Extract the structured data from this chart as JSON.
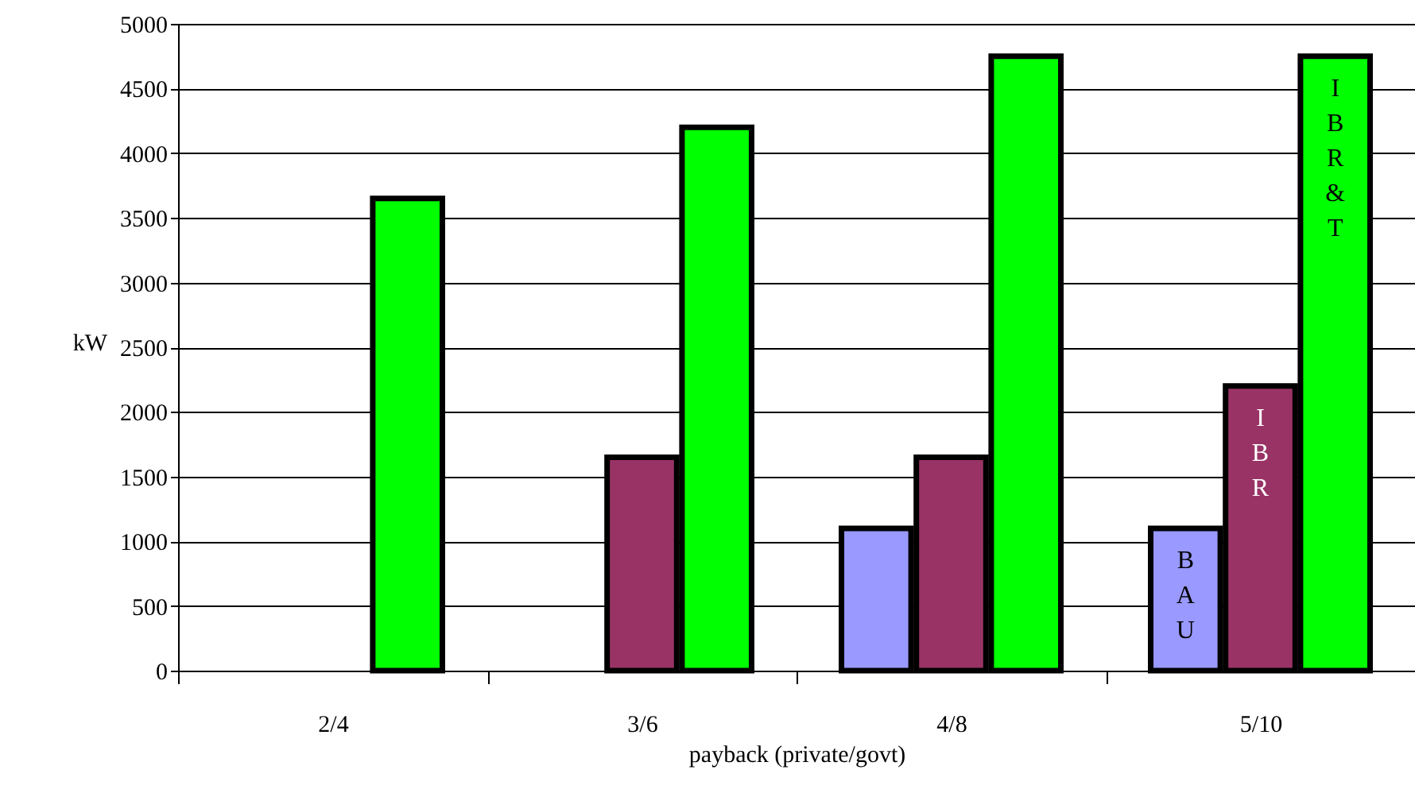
{
  "chart_data": {
    "type": "bar",
    "xlabel": "payback (private/govt)",
    "ylabel": "kW",
    "categories": [
      "2/4",
      "3/6",
      "4/8",
      "5/10"
    ],
    "series": [
      {
        "name": "BAU",
        "color": "#9999ff",
        "values": [
          null,
          null,
          1100,
          1100
        ]
      },
      {
        "name": "IBR",
        "color": "#993366",
        "values": [
          null,
          1650,
          1650,
          2200
        ]
      },
      {
        "name": "IBR&T",
        "color": "#00ff00",
        "values": [
          3650,
          4200,
          4750,
          4750
        ]
      }
    ],
    "ylim": [
      0,
      5000
    ],
    "yticks": [
      0,
      500,
      1000,
      1500,
      2000,
      2500,
      3000,
      3500,
      4000,
      4500,
      5000
    ],
    "grid": "y"
  }
}
